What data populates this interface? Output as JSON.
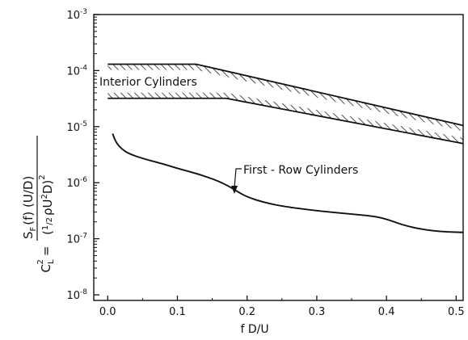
{
  "chart_data": {
    "type": "line",
    "xlabel": "f D/U",
    "ylabel": {
      "lhs": "C",
      "lhs_sub": "L",
      "lhs_sup": "2",
      "eq": "=",
      "num_a": "S",
      "num_a_sub": "F",
      "num_b": "(f) (U/D)",
      "den_a": "(",
      "den_frac_n": "1",
      "den_frac_d": "2",
      "den_b": "ρU",
      "den_sup": "2",
      "den_c": "D)",
      "den_outer_sup": "2"
    },
    "x_ticks": [
      "0.0",
      "0.1",
      "0.2",
      "0.3",
      "0.4",
      "0.5"
    ],
    "x_tick_values": [
      0,
      0.1,
      0.2,
      0.3,
      0.4,
      0.5
    ],
    "y_ticks": [
      {
        "base": "10",
        "exp": "-8",
        "value": -8
      },
      {
        "base": "10",
        "exp": "-7",
        "value": -7
      },
      {
        "base": "10",
        "exp": "-6",
        "value": -6
      },
      {
        "base": "10",
        "exp": "-5",
        "value": -5
      },
      {
        "base": "10",
        "exp": "-4",
        "value": -4
      },
      {
        "base": "10",
        "exp": "-3",
        "value": -3
      }
    ],
    "xlim": [
      -0.02,
      0.51
    ],
    "ylim_log10": [
      -8.1,
      -3
    ],
    "y_scale": "log",
    "grid": false,
    "band": {
      "label": "Interior Cylinders",
      "upper_x": [
        0.0,
        0.127,
        0.51
      ],
      "upper_y": [
        0.00013,
        0.00013,
        1.05e-05
      ],
      "lower_x": [
        0.0,
        0.17,
        0.51
      ],
      "lower_y": [
        3.2e-05,
        3.2e-05,
        5e-06
      ]
    },
    "curve": {
      "label": "First - Row Cylinders",
      "x": [
        0.007,
        0.012,
        0.02,
        0.03,
        0.05,
        0.08,
        0.1,
        0.12,
        0.14,
        0.16,
        0.175,
        0.19,
        0.2,
        0.22,
        0.25,
        0.3,
        0.35,
        0.38,
        0.4,
        0.43,
        0.47,
        0.51
      ],
      "y": [
        7.5e-06,
        5.2e-06,
        4e-06,
        3.3e-06,
        2.7e-06,
        2.15e-06,
        1.8e-06,
        1.55e-06,
        1.3e-06,
        1.05e-06,
        8.5e-07,
        6.5e-07,
        5.6e-07,
        4.6e-07,
        3.8e-07,
        3.15e-07,
        2.75e-07,
        2.55e-07,
        2.25e-07,
        1.65e-07,
        1.35e-07,
        1.3e-07
      ]
    },
    "annotation_arrow_at": {
      "x": 0.19,
      "y": 6.2e-07
    }
  }
}
